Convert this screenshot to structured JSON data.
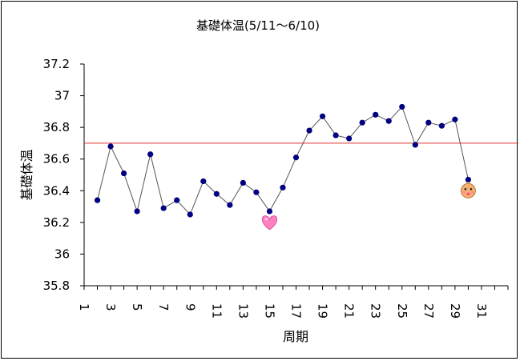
{
  "chart_data": {
    "type": "line",
    "title": "基礎体温(5/11～6/10)",
    "xlabel": "周期",
    "ylabel": "基礎体温",
    "ylim": [
      35.8,
      37.2
    ],
    "yticks": [
      "35.8",
      "36",
      "36.2",
      "36.4",
      "36.6",
      "36.8",
      "37",
      "37.2"
    ],
    "xlim": [
      1,
      33
    ],
    "xtick_labels": [
      "1",
      "3",
      "5",
      "7",
      "9",
      "11",
      "13",
      "15",
      "17",
      "19",
      "21",
      "23",
      "25",
      "27",
      "29",
      "31"
    ],
    "series": [
      {
        "x": [
          2,
          3,
          4,
          5,
          6,
          7,
          8,
          9,
          10,
          11,
          12,
          13,
          14,
          15,
          16,
          17,
          18,
          19,
          20,
          21,
          22,
          23,
          24,
          25,
          26,
          27,
          28,
          29,
          30
        ],
        "values": [
          36.34,
          36.68,
          36.51,
          36.27,
          36.63,
          36.29,
          36.34,
          36.25,
          36.46,
          36.38,
          36.31,
          36.45,
          36.39,
          36.27,
          36.42,
          36.61,
          36.78,
          36.87,
          36.75,
          36.73,
          36.83,
          36.88,
          36.84,
          36.93,
          36.69,
          36.83,
          36.81,
          36.85,
          36.47
        ],
        "color": "#000080",
        "line_color": "#555555"
      }
    ],
    "reference_line": {
      "y": 36.7,
      "color": "#e03030"
    },
    "markers": [
      {
        "icon": "heart-icon",
        "x": 15,
        "y": 36.2,
        "color": "#ff80c0"
      },
      {
        "icon": "baby-face-icon",
        "x": 30,
        "y": 36.4,
        "color": "#f5b070"
      }
    ],
    "grid": false
  }
}
